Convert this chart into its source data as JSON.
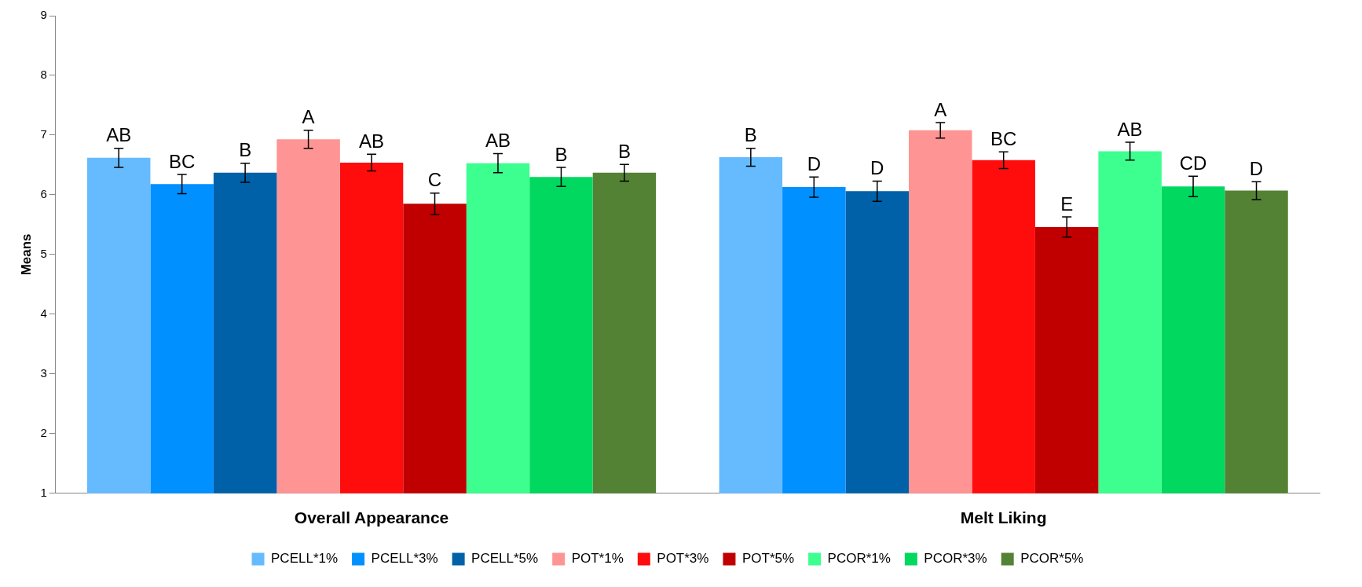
{
  "chart_data": {
    "type": "bar",
    "ylabel": "Means",
    "categories": [
      "Overall Appearance",
      "Melt Liking"
    ],
    "series": [
      {
        "name": "PCELL*1%",
        "color": "#66bbff",
        "values": [
          6.62,
          6.63
        ],
        "errors": [
          0.16,
          0.15
        ],
        "value_labels": [
          "AB",
          "B"
        ]
      },
      {
        "name": "PCELL*3%",
        "color": "#0090ff",
        "values": [
          6.18,
          6.13
        ],
        "errors": [
          0.16,
          0.17
        ],
        "value_labels": [
          "BC",
          "D"
        ]
      },
      {
        "name": "PCELL*5%",
        "color": "#0060a8",
        "values": [
          6.37,
          6.06
        ],
        "errors": [
          0.16,
          0.17
        ],
        "value_labels": [
          "B",
          "D"
        ]
      },
      {
        "name": "POT*1%",
        "color": "#ff9494",
        "values": [
          6.93,
          7.08
        ],
        "errors": [
          0.15,
          0.13
        ],
        "value_labels": [
          "A",
          "A"
        ]
      },
      {
        "name": "POT*3%",
        "color": "#ff0c0c",
        "values": [
          6.54,
          6.58
        ],
        "errors": [
          0.14,
          0.14
        ],
        "value_labels": [
          "AB",
          "BC"
        ]
      },
      {
        "name": "POT*5%",
        "color": "#c00000",
        "values": [
          5.85,
          5.46
        ],
        "errors": [
          0.18,
          0.17
        ],
        "value_labels": [
          "C",
          "E"
        ]
      },
      {
        "name": "PCOR*1%",
        "color": "#3cff90",
        "values": [
          6.53,
          6.73
        ],
        "errors": [
          0.16,
          0.15
        ],
        "value_labels": [
          "AB",
          "AB"
        ]
      },
      {
        "name": "PCOR*3%",
        "color": "#00d860",
        "values": [
          6.3,
          6.14
        ],
        "errors": [
          0.16,
          0.17
        ],
        "value_labels": [
          "B",
          "CD"
        ]
      },
      {
        "name": "PCOR*5%",
        "color": "#548235",
        "values": [
          6.37,
          6.07
        ],
        "errors": [
          0.14,
          0.15
        ],
        "value_labels": [
          "B",
          "D"
        ]
      }
    ],
    "ylim": [
      1,
      9
    ],
    "yticks": [
      1,
      2,
      3,
      4,
      5,
      6,
      7,
      8,
      9
    ],
    "grid": false,
    "legend": "bottom"
  }
}
